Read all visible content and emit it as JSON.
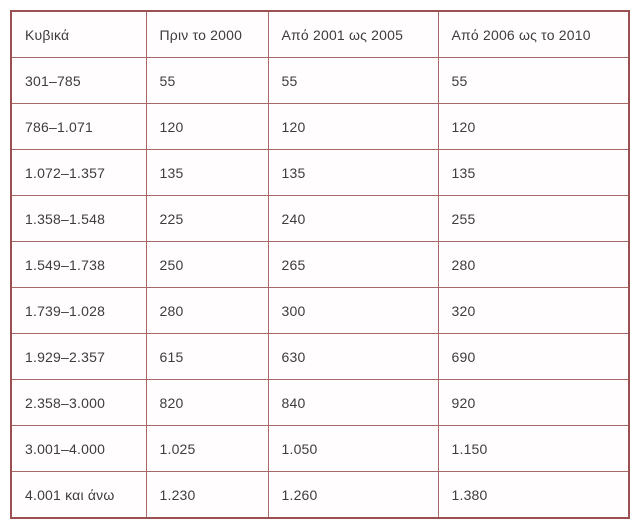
{
  "colors": {
    "outer_border": "#9b5151",
    "inner_border": "#a76868",
    "text": "#3d3d3d",
    "cell_background": "#fffdfd",
    "page_background": "#ffffff"
  },
  "table": {
    "columns": [
      "Κυβικά",
      "Πριν το 2000",
      "Από 2001 ως 2005",
      "Από 2006 ως το 2010"
    ],
    "rows": [
      [
        "301–785",
        "55",
        "55",
        "55"
      ],
      [
        "786–1.071",
        "120",
        "120",
        "120"
      ],
      [
        "1.072–1.357",
        "135",
        "135",
        "135"
      ],
      [
        "1.358–1.548",
        "225",
        "240",
        "255"
      ],
      [
        "1.549–1.738",
        "250",
        "265",
        "280"
      ],
      [
        "1.739–1.028",
        "280",
        "300",
        "320"
      ],
      [
        "1.929–2.357",
        "615",
        "630",
        "690"
      ],
      [
        "2.358–3.000",
        "820",
        "840",
        "920"
      ],
      [
        "3.001–4.000",
        "1.025",
        "1.050",
        "1.150"
      ],
      [
        "4.001 και άνω",
        "1.230",
        "1.260",
        "1.380"
      ]
    ]
  }
}
